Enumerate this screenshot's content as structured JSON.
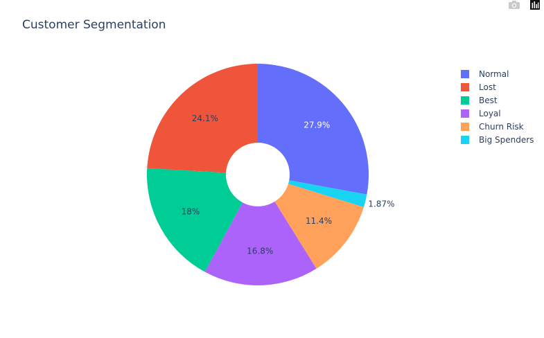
{
  "title": "Customer Segmentation",
  "modebar": {
    "camera_icon": "camera-icon",
    "plotly_logo": "plotly-logo-icon"
  },
  "chart_data": {
    "type": "pie",
    "hole": true,
    "title": "Customer Segmentation",
    "legend_position": "top-right",
    "slices": [
      {
        "name": "Normal",
        "value": 27.9,
        "label": "27.9%",
        "color": "#636efa",
        "label_color": "#ffffff"
      },
      {
        "name": "Big Spenders",
        "value": 1.87,
        "label": "1.87%",
        "color": "#19d3f3",
        "label_color": "#2a3f5f",
        "outside": true
      },
      {
        "name": "Churn Risk",
        "value": 11.4,
        "label": "11.4%",
        "color": "#ffa15a",
        "label_color": "#2a3f5f"
      },
      {
        "name": "Loyal",
        "value": 16.8,
        "label": "16.8%",
        "color": "#ab63fa",
        "label_color": "#2a3f5f"
      },
      {
        "name": "Best",
        "value": 18,
        "label": "18%",
        "color": "#00cc96",
        "label_color": "#2a3f5f"
      },
      {
        "name": "Lost",
        "value": 24.1,
        "label": "24.1%",
        "color": "#ef553b",
        "label_color": "#2a3f5f"
      }
    ],
    "legend_order": [
      "Normal",
      "Lost",
      "Best",
      "Loyal",
      "Churn Risk",
      "Big Spenders"
    ]
  }
}
